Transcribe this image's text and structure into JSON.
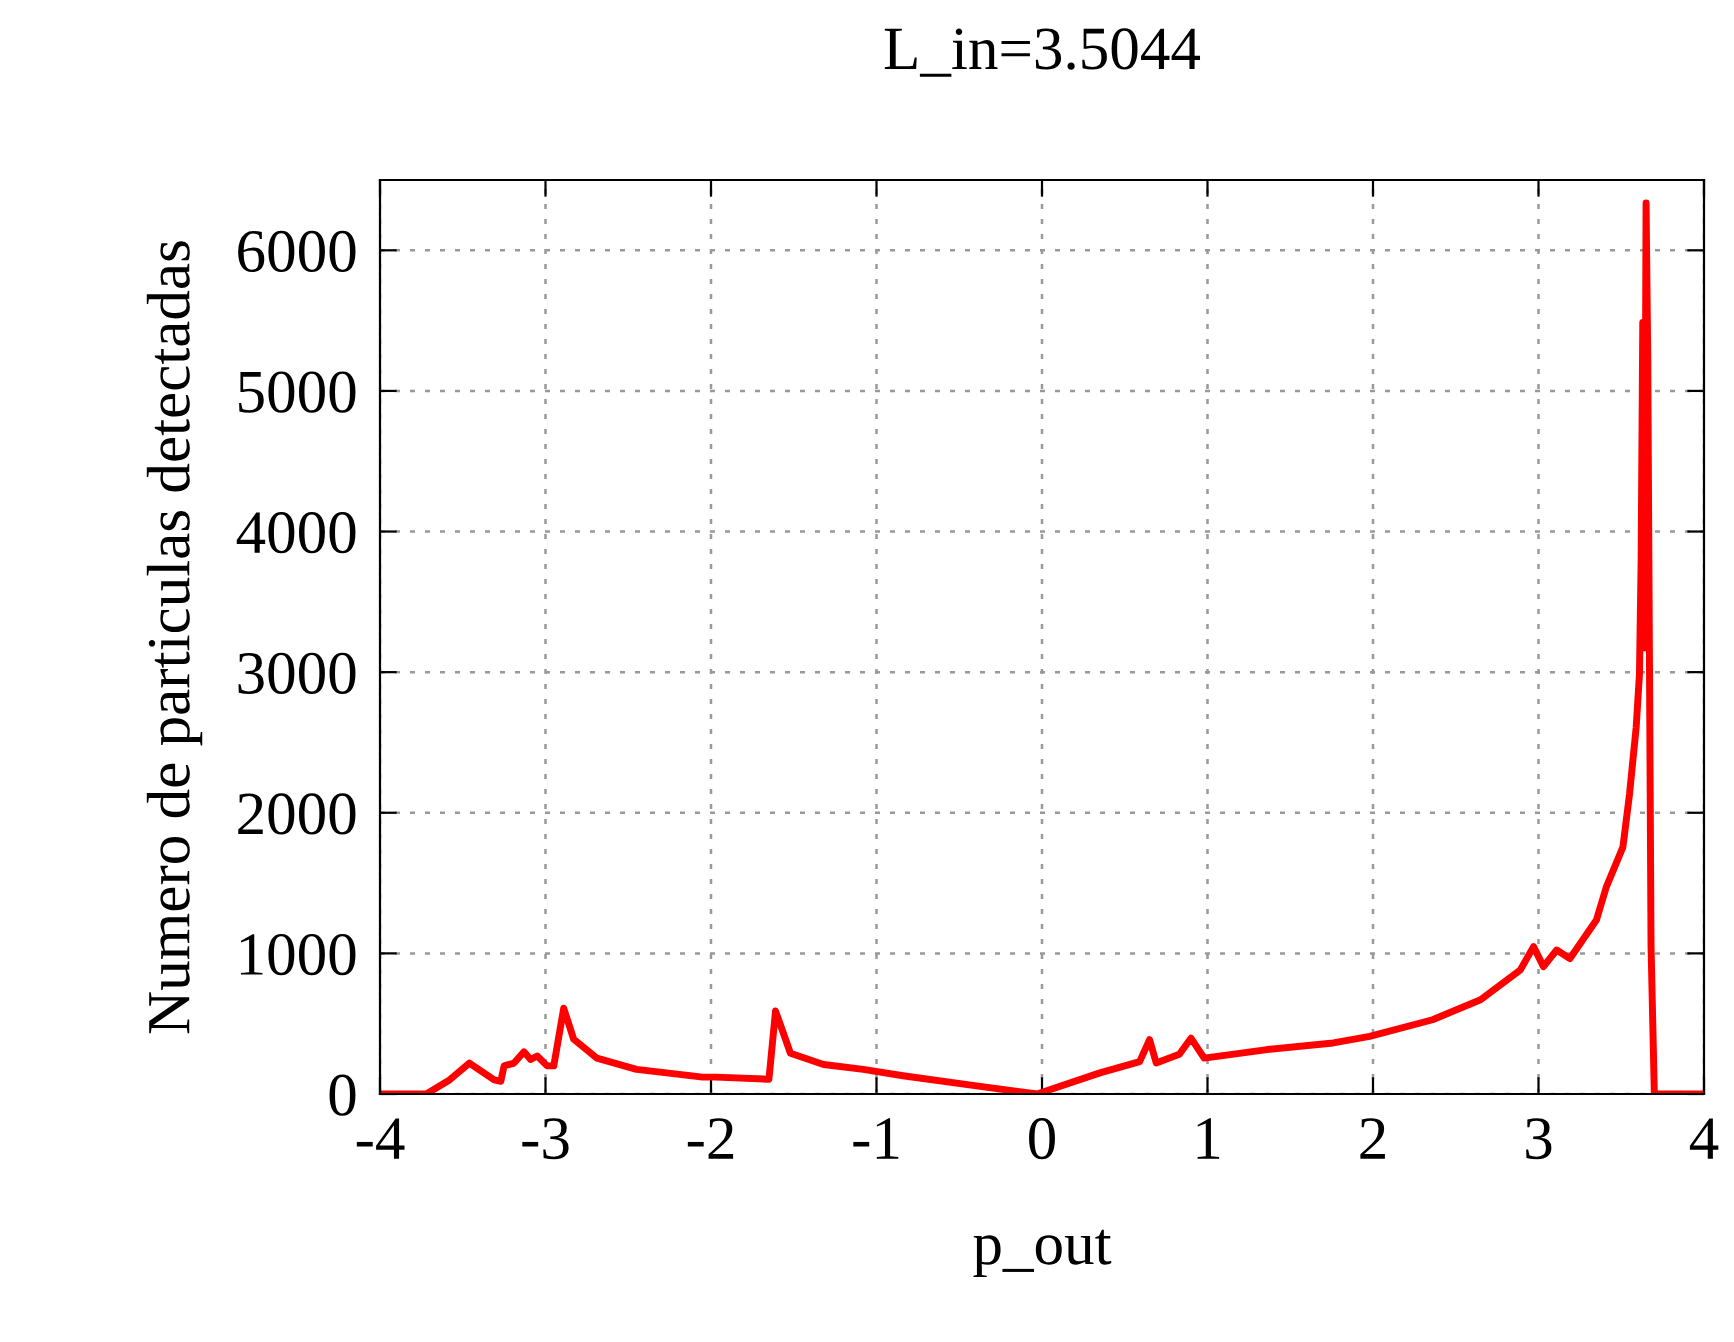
{
  "chart_data": {
    "type": "line",
    "title": "L_in=3.5044",
    "xlabel": "p_out",
    "ylabel": "Numero de particulas detectadas",
    "xlim": [
      -4,
      4
    ],
    "ylim": [
      0,
      6500
    ],
    "xticks": [
      -4,
      -3,
      -2,
      -1,
      0,
      1,
      2,
      3,
      4
    ],
    "yticks": [
      0,
      1000,
      2000,
      3000,
      4000,
      5000,
      6000
    ],
    "grid": true,
    "legend": false,
    "marker": "none",
    "line_style": "solid",
    "series": [
      {
        "color": "#ff0000",
        "x": [
          -4,
          -3.72,
          -3.58,
          -3.46,
          -3.31,
          -3.27,
          -3.25,
          -3.19,
          -3.13,
          -3.09,
          -3.05,
          -2.99,
          -2.95,
          -2.89,
          -2.83,
          -2.69,
          -2.45,
          -2.05,
          -1.97,
          -1.65,
          -1.61,
          -1.52,
          -1.32,
          -1.08,
          -0.84,
          -0.44,
          -0.03,
          0.35,
          0.59,
          0.65,
          0.69,
          0.83,
          0.9,
          0.98,
          1.36,
          1.76,
          1.98,
          2.36,
          2.65,
          2.89,
          2.97,
          3.03,
          3.11,
          3.19,
          3.35,
          3.41,
          3.51,
          3.55,
          3.59,
          3.61,
          3.62,
          3.63,
          3.64,
          3.65,
          3.66,
          3.67,
          3.68,
          3.7,
          4
        ],
        "values": [
          0,
          0,
          100,
          220,
          100,
          90,
          200,
          220,
          300,
          245,
          270,
          200,
          200,
          610,
          390,
          255,
          175,
          120,
          120,
          105,
          590,
          290,
          210,
          175,
          130,
          65,
          0,
          150,
          230,
          387,
          221,
          283,
          397,
          255,
          316,
          363,
          410,
          528,
          670,
          882,
          1048,
          906,
          1024,
          963,
          1237,
          1473,
          1756,
          2133,
          2606,
          2983,
          3786,
          5486,
          3173,
          6336,
          5249,
          3173,
          1052,
          0,
          0
        ]
      }
    ]
  }
}
